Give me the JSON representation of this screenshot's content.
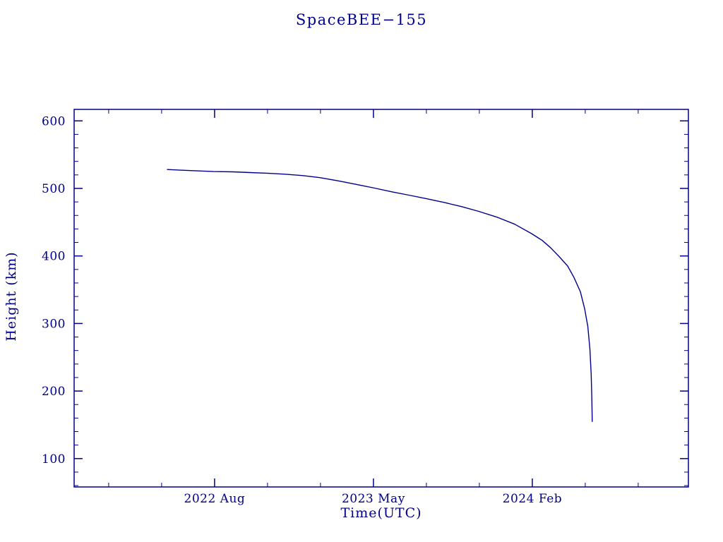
{
  "page": {
    "background": "#ffffff"
  },
  "chart_data": {
    "type": "line",
    "title": "SpaceBEE−155",
    "xlabel": "Time(UTC)",
    "ylabel": "Height (km)",
    "line_color": "#00008b",
    "axis_color": "#00008b",
    "text_color": "#00008b",
    "grid": false,
    "legend": false,
    "xlim": [
      2021.92,
      2024.82
    ],
    "ylim": [
      58,
      617
    ],
    "x_ticks": [
      {
        "value": 2022.583,
        "label": "2022 Aug"
      },
      {
        "value": 2023.333,
        "label": "2023 May"
      },
      {
        "value": 2024.083,
        "label": "2024 Feb"
      }
    ],
    "x_minor_ticks": [
      2022.083,
      2022.333,
      2022.833,
      2023.083,
      2023.583,
      2023.833,
      2024.333,
      2024.583
    ],
    "y_ticks": [
      {
        "value": 100,
        "label": "100"
      },
      {
        "value": 200,
        "label": "200"
      },
      {
        "value": 300,
        "label": "300"
      },
      {
        "value": 400,
        "label": "400"
      },
      {
        "value": 500,
        "label": "500"
      },
      {
        "value": 600,
        "label": "600"
      }
    ],
    "y_minor_ticks": [
      60,
      80,
      120,
      140,
      160,
      180,
      220,
      240,
      260,
      280,
      320,
      340,
      360,
      380,
      420,
      440,
      460,
      480,
      520,
      540,
      560,
      580
    ],
    "points": [
      [
        2022.36,
        528
      ],
      [
        2022.42,
        527
      ],
      [
        2022.5,
        526
      ],
      [
        2022.58,
        525
      ],
      [
        2022.67,
        524.5
      ],
      [
        2022.75,
        523.5
      ],
      [
        2022.83,
        522.5
      ],
      [
        2022.92,
        521
      ],
      [
        2023.0,
        519
      ],
      [
        2023.08,
        516
      ],
      [
        2023.17,
        511
      ],
      [
        2023.25,
        506
      ],
      [
        2023.33,
        501
      ],
      [
        2023.42,
        495
      ],
      [
        2023.5,
        490
      ],
      [
        2023.58,
        485
      ],
      [
        2023.67,
        479
      ],
      [
        2023.75,
        473
      ],
      [
        2023.83,
        466
      ],
      [
        2023.92,
        457
      ],
      [
        2024.0,
        447
      ],
      [
        2024.08,
        433
      ],
      [
        2024.13,
        423
      ],
      [
        2024.17,
        412
      ],
      [
        2024.21,
        399
      ],
      [
        2024.25,
        385
      ],
      [
        2024.28,
        368
      ],
      [
        2024.31,
        347
      ],
      [
        2024.33,
        322
      ],
      [
        2024.345,
        296
      ],
      [
        2024.355,
        262
      ],
      [
        2024.361,
        225
      ],
      [
        2024.364,
        190
      ],
      [
        2024.366,
        155
      ]
    ]
  }
}
